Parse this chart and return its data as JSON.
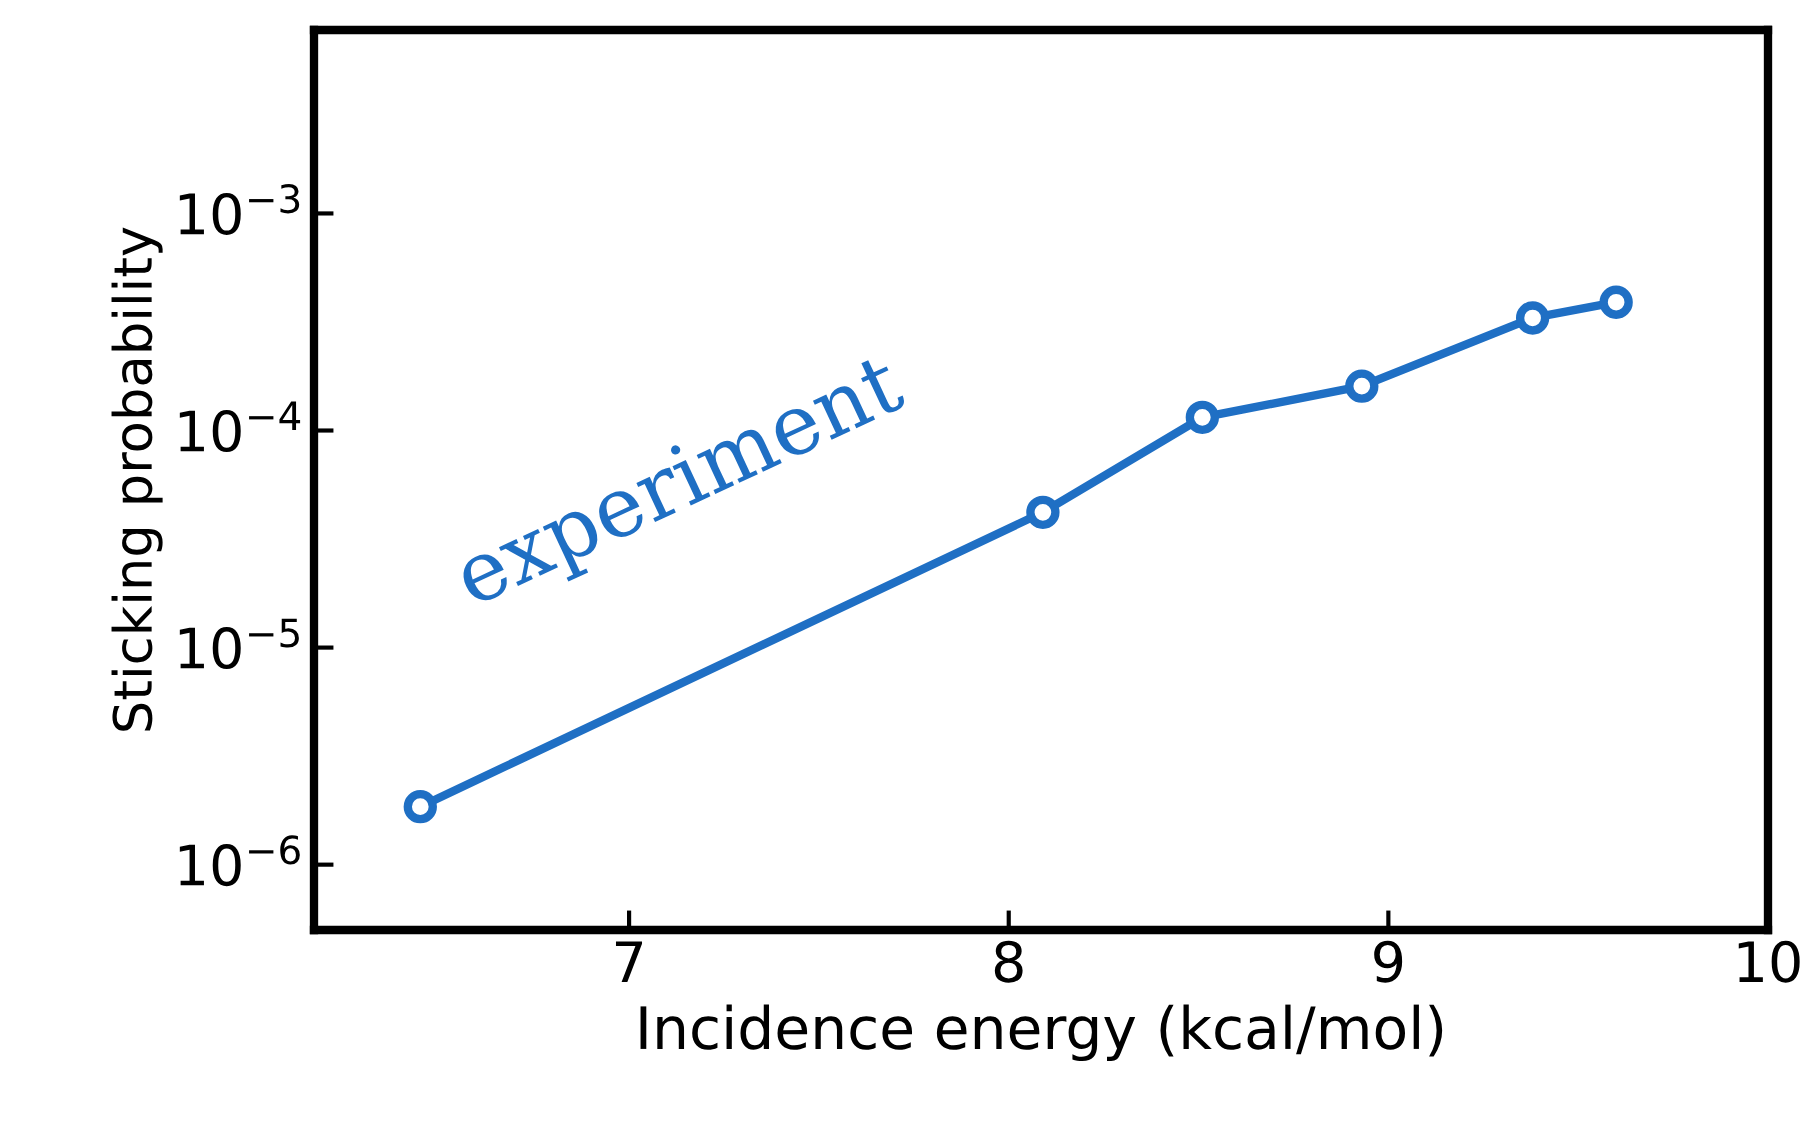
{
  "chart_data": {
    "type": "line",
    "xlabel": "Incidence energy (kcal/mol)",
    "ylabel": "Sticking probability",
    "x": [
      6.45,
      8.09,
      8.51,
      8.93,
      9.38,
      9.6
    ],
    "series": [
      {
        "name": "experiment",
        "color": "#1f6fc4",
        "values": [
          1.85e-06,
          4.2e-05,
          0.000115,
          0.00016,
          0.00033,
          0.00039
        ]
      }
    ],
    "log": "y",
    "xlim": [
      6.17,
      10
    ],
    "ylim": [
      5e-07,
      0.007
    ],
    "xticks": [
      7,
      8,
      9,
      10
    ],
    "yticks": [
      {
        "value": 1e-06,
        "label": "10$^{−6}$"
      },
      {
        "value": 1e-05,
        "label": "10$^{−5}$"
      },
      {
        "value": 0.0001,
        "label": "10$^{−4}$"
      },
      {
        "value": 0.001,
        "label": "10$^{−3}$"
      }
    ],
    "marker": "circle",
    "line_style": "solid",
    "grid": false,
    "legend": false
  }
}
